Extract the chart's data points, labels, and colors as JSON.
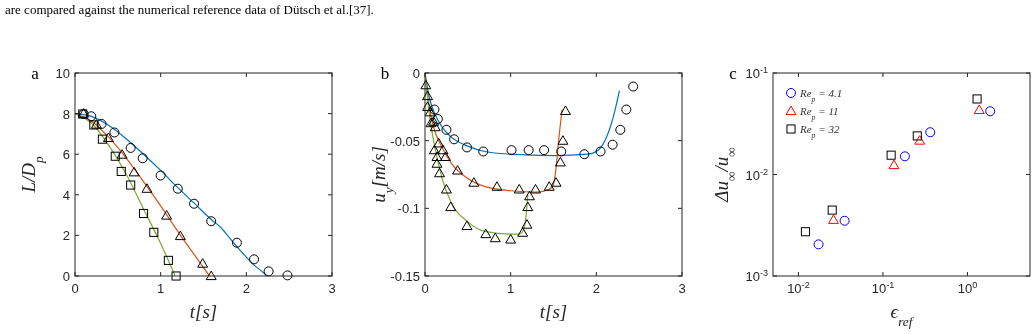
{
  "chart_data": [
    {
      "type": "line",
      "title": "a",
      "xlabel": "t[s]",
      "ylabel": "L/D$_{p}$",
      "xlim": [
        0,
        3
      ],
      "ylim": [
        0,
        10
      ],
      "xticks": [
        0,
        1,
        2,
        3
      ],
      "yticks": [
        0,
        2,
        4,
        6,
        8,
        10
      ],
      "legend": false,
      "annotations": [
        "are compared against the numerical reference data of Dütsch et al.[37]."
      ],
      "series": [
        {
          "color": "#0072bd",
          "line_style": "solid",
          "x": [
            0,
            0.2,
            0.4,
            0.6,
            0.8,
            1.0,
            1.2,
            1.4,
            1.6,
            1.7,
            1.8,
            1.9,
            2.0,
            2.1,
            2.16,
            2.24
          ],
          "values": [
            8,
            7.85,
            7.4,
            6.75,
            6.0,
            5.2,
            4.35,
            3.55,
            2.75,
            2.4,
            1.9,
            1.4,
            0.93,
            0.5,
            0.3,
            0
          ]
        },
        {
          "color": "#d95319",
          "line_style": "solid",
          "x": [
            0,
            0.2,
            0.4,
            0.6,
            0.8,
            1.0,
            1.2,
            1.4,
            1.57
          ],
          "values": [
            8,
            7.6,
            6.8,
            5.8,
            4.65,
            3.45,
            2.2,
            1.0,
            0
          ]
        },
        {
          "color": "#77ac30",
          "line_style": "solid",
          "x": [
            0,
            0.2,
            0.4,
            0.6,
            0.8,
            1.0,
            1.17
          ],
          "values": [
            8,
            7.5,
            6.4,
            5.0,
            3.3,
            1.6,
            0
          ]
        },
        {
          "type": "scatter",
          "color": "#000000",
          "marker": "circle",
          "x": [
            0.1,
            0.19,
            0.31,
            0.46,
            0.65,
            0.79,
            1.0,
            1.2,
            1.39,
            1.59,
            1.89,
            2.09,
            2.26,
            2.48
          ],
          "values": [
            7.98,
            7.87,
            7.49,
            7.07,
            6.31,
            5.8,
            4.95,
            4.3,
            3.56,
            2.7,
            1.64,
            0.82,
            0.23,
            0.03
          ]
        },
        {
          "type": "scatter",
          "color": "#000000",
          "marker": "triangle",
          "x": [
            0.1,
            0.25,
            0.39,
            0.55,
            0.69,
            0.84,
            1.07,
            1.23,
            1.49,
            1.59
          ],
          "values": [
            8.0,
            7.46,
            6.8,
            5.98,
            5.11,
            4.3,
            2.98,
            1.97,
            0.61,
            0.0
          ]
        },
        {
          "type": "scatter",
          "color": "#000000",
          "marker": "square",
          "x": [
            0.09,
            0.22,
            0.32,
            0.47,
            0.54,
            0.65,
            0.8,
            0.92,
            1.09,
            1.18
          ],
          "values": [
            7.98,
            7.44,
            6.74,
            5.9,
            5.15,
            4.48,
            3.08,
            2.15,
            0.77,
            0
          ]
        }
      ]
    },
    {
      "type": "line",
      "title": "b",
      "xlabel": "t[s]",
      "ylabel": "u$_{y}$[m/s]",
      "xlim": [
        0,
        3
      ],
      "ylim": [
        -0.15,
        0
      ],
      "xticks": [
        0,
        1,
        2,
        3
      ],
      "yticks": [
        -0.15,
        -0.1,
        -0.05,
        0
      ],
      "legend": false,
      "series": [
        {
          "color": "#0072bd",
          "line_style": "solid",
          "x": [
            0,
            0.05,
            0.1,
            0.2,
            0.3,
            0.5,
            0.7,
            1.0,
            1.5,
            1.9,
            2.0,
            2.1,
            2.2,
            2.27
          ],
          "values": [
            0,
            -0.018,
            -0.028,
            -0.04,
            -0.047,
            -0.054,
            -0.058,
            -0.06,
            -0.061,
            -0.06,
            -0.058,
            -0.05,
            -0.032,
            -0.013
          ]
        },
        {
          "color": "#d95319",
          "line_style": "solid",
          "x": [
            0,
            0.05,
            0.1,
            0.2,
            0.3,
            0.5,
            0.7,
            1.0,
            1.3,
            1.45,
            1.5,
            1.53,
            1.56,
            1.6
          ],
          "values": [
            0,
            -0.025,
            -0.04,
            -0.055,
            -0.066,
            -0.078,
            -0.084,
            -0.087,
            -0.088,
            -0.086,
            -0.082,
            -0.07,
            -0.05,
            -0.027
          ]
        },
        {
          "color": "#77ac30",
          "line_style": "solid",
          "x": [
            0,
            0.05,
            0.1,
            0.2,
            0.3,
            0.5,
            0.7,
            1.0,
            1.1,
            1.15,
            1.18,
            1.2
          ],
          "values": [
            0,
            -0.03,
            -0.05,
            -0.078,
            -0.095,
            -0.11,
            -0.117,
            -0.119,
            -0.119,
            -0.116,
            -0.105,
            -0.09
          ]
        },
        {
          "type": "scatter",
          "color": "#000000",
          "marker": "circle",
          "x": [
            0.11,
            0.15,
            0.25,
            0.34,
            0.49,
            0.68,
            1.01,
            1.21,
            1.39,
            1.59,
            1.86,
            2.05,
            2.19,
            2.28,
            2.35,
            2.43
          ],
          "values": [
            -0.027,
            -0.034,
            -0.042,
            -0.049,
            -0.055,
            -0.058,
            -0.057,
            -0.057,
            -0.057,
            -0.058,
            -0.06,
            -0.058,
            -0.053,
            -0.042,
            -0.027,
            -0.01
          ]
        },
        {
          "type": "scatter",
          "color": "#000000",
          "marker": "triangle",
          "x": [
            0.01,
            0.03,
            0.06,
            0.1,
            0.12,
            0.16,
            0.21,
            0.24,
            0.38,
            0.57,
            0.84,
            1.1,
            1.29,
            1.45,
            1.53,
            1.58,
            1.61,
            1.64
          ],
          "values": [
            -0.009,
            -0.017,
            -0.029,
            -0.036,
            -0.04,
            -0.052,
            -0.057,
            -0.062,
            -0.072,
            -0.081,
            -0.084,
            -0.086,
            -0.086,
            -0.084,
            -0.081,
            -0.066,
            -0.05,
            -0.028
          ]
        },
        {
          "type": "scatter",
          "color": "#000000",
          "marker": "triangle",
          "x": [
            0.03,
            0.07,
            0.11,
            0.14,
            0.14,
            0.17,
            0.25,
            0.3,
            0.49,
            0.71,
            0.82,
            1.0,
            1.14,
            1.19,
            1.2,
            1.22
          ],
          "values": [
            -0.025,
            -0.037,
            -0.057,
            -0.062,
            -0.067,
            -0.074,
            -0.086,
            -0.099,
            -0.113,
            -0.119,
            -0.122,
            -0.123,
            -0.118,
            -0.112,
            -0.099,
            -0.091
          ]
        }
      ]
    },
    {
      "type": "scatter",
      "title": "c",
      "xlabel": "ϵ$_{ref}$",
      "ylabel": "Δu$_{∞}$/u$_{∞}$",
      "log": "xy",
      "xlim": [
        0.005,
        5.5
      ],
      "ylim": [
        0.001,
        0.1
      ],
      "xticks": [
        {
          "value": 0.01,
          "label": "10$^{-2}$"
        },
        {
          "value": 0.1,
          "label": "10$^{-1}$"
        },
        {
          "value": 1,
          "label": "10$^{0}$"
        }
      ],
      "yticks": [
        {
          "value": 0.001,
          "label": "10$^{-3}$"
        },
        {
          "value": 0.01,
          "label": "10$^{-2}$"
        },
        {
          "value": 0.1,
          "label": "10$^{-1}$"
        }
      ],
      "legend": "top left",
      "series": [
        {
          "name": "Re$_{p}$ = 4.1",
          "color": "#0000ff",
          "marker": "circle",
          "x": [
            0.0173,
            0.0352,
            0.182,
            0.363,
            1.86
          ],
          "values": [
            0.00205,
            0.0035,
            0.0151,
            0.0261,
            0.042
          ]
        },
        {
          "name": "Re$_{p}$ = 11",
          "color": "#ff0000",
          "marker": "triangle",
          "x": [
            0.026,
            0.135,
            0.272,
            1.38
          ],
          "values": [
            0.00358,
            0.0124,
            0.0216,
            0.0433
          ]
        },
        {
          "name": "Re$_{p}$ = 32",
          "color": "#000000",
          "marker": "square",
          "x": [
            0.0121,
            0.0251,
            0.125,
            0.255,
            1.3
          ],
          "values": [
            0.00273,
            0.00446,
            0.0155,
            0.024,
            0.0555
          ]
        }
      ]
    }
  ]
}
